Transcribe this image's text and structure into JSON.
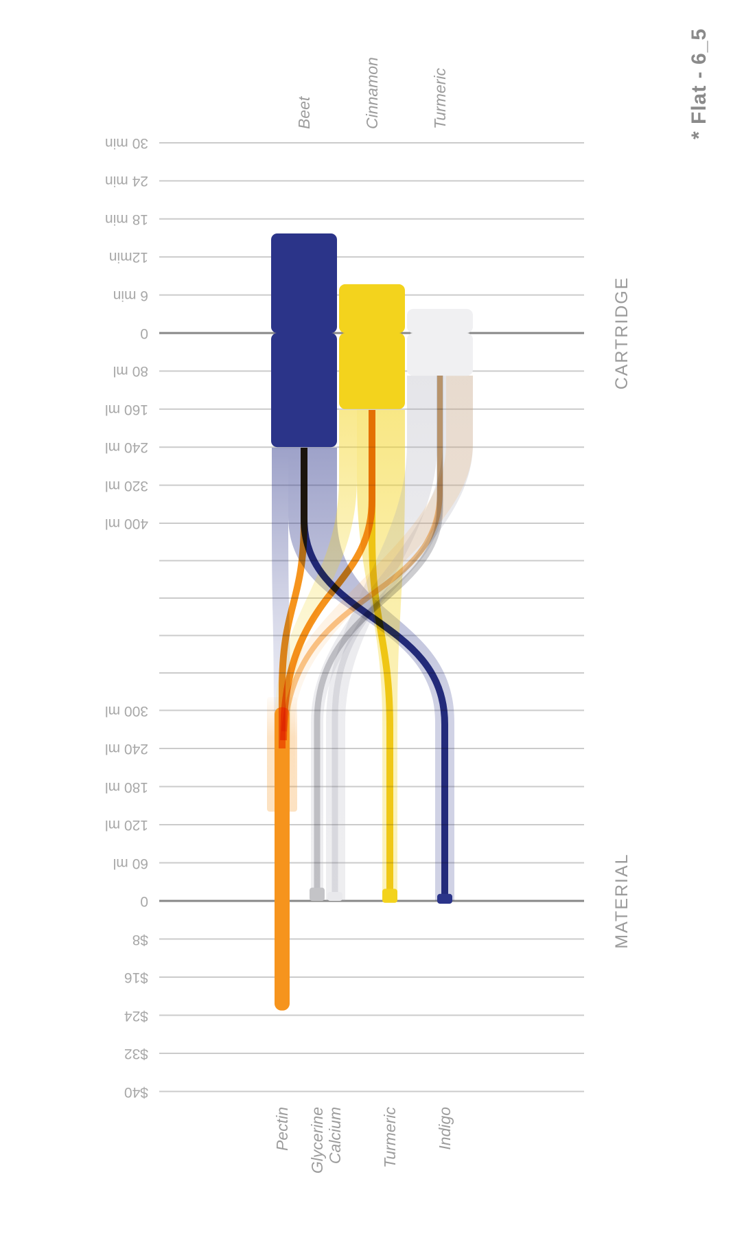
{
  "title": "* Flat - 6_5",
  "sections": {
    "cartridge": "CARTRIDGE",
    "material": "MATERIAL"
  },
  "colors": {
    "navy": "#2b3489",
    "yellow": "#f3d31d",
    "lightGray": "#f0f0f2",
    "orange": "#f6941d",
    "grayLine": "#cdcdd0",
    "grayCap": "#c4c4c7",
    "paleGrayLine": "#e9e9ec",
    "grayBandBase": "#a9a9b6",
    "grid": "#cbcbcb",
    "zeroLine": "#878787",
    "tickText": "#a8a8a8",
    "labelText": "#9c9c9c",
    "titleText": "#8a8a8a"
  },
  "chart_data": {
    "type": "sankey",
    "title": "* Flat - 6_5",
    "orientation": "landscape chart rotated 90deg CCW (all text reads bottom-to-top, ticks upside down)",
    "legend_position": "none",
    "grid": "on",
    "cartridge_axis": {
      "ticks": [
        {
          "label": "30 min",
          "value": 30,
          "kind": "min"
        },
        {
          "label": "24 min",
          "value": 24,
          "kind": "min"
        },
        {
          "label": "18 min",
          "value": 18,
          "kind": "min"
        },
        {
          "label": "12min",
          "value": 12,
          "kind": "min"
        },
        {
          "label": "6 min",
          "value": 6,
          "kind": "min"
        },
        {
          "label": "0",
          "value": 0,
          "kind": "zero"
        },
        {
          "label": "80 ml",
          "value": 80,
          "kind": "ml"
        },
        {
          "label": "160 ml",
          "value": 160,
          "kind": "ml"
        },
        {
          "label": "240 ml",
          "value": 240,
          "kind": "ml"
        },
        {
          "label": "320 ml",
          "value": 320,
          "kind": "ml"
        },
        {
          "label": "400 ml",
          "value": 400,
          "kind": "ml"
        }
      ],
      "time_range_min": [
        0,
        30
      ],
      "volume_range_ml": [
        0,
        400
      ]
    },
    "unlabeled_gridlines_between_sections": 4,
    "material_axis": {
      "ticks": [
        {
          "label": "300 ml",
          "value": 300,
          "kind": "ml"
        },
        {
          "label": "240 ml",
          "value": 240,
          "kind": "ml"
        },
        {
          "label": "180 ml",
          "value": 180,
          "kind": "ml"
        },
        {
          "label": "120 ml",
          "value": 120,
          "kind": "ml"
        },
        {
          "label": "60 ml",
          "value": 60,
          "kind": "ml"
        },
        {
          "label": "0",
          "value": 0,
          "kind": "zero"
        },
        {
          "label": "$8",
          "value": 8,
          "kind": "usd"
        },
        {
          "label": "$16",
          "value": 16,
          "kind": "usd"
        },
        {
          "label": "$24",
          "value": 24,
          "kind": "usd"
        },
        {
          "label": "$32",
          "value": 32,
          "kind": "usd"
        },
        {
          "label": "$40",
          "value": 40,
          "kind": "usd"
        }
      ],
      "volume_range_ml": [
        0,
        300
      ],
      "cost_range_usd": [
        0,
        40
      ]
    },
    "cartridges": [
      {
        "name": "Beet",
        "color": "navy",
        "time_min": 15.7,
        "volume_ml": 240
      },
      {
        "name": "Cinnamon",
        "color": "yellow",
        "time_min": 7.7,
        "volume_ml": 160
      },
      {
        "name": "Turmeric",
        "color": "lightGray",
        "time_min": 3.8,
        "volume_ml": 90
      }
    ],
    "materials": [
      {
        "name": "Pectin",
        "color": "orange",
        "volume_ml": 130,
        "cost_usd": 23
      },
      {
        "name": "Glycerine",
        "color": "grayLine",
        "volume_ml": 21,
        "cost_usd": 0
      },
      {
        "name": "Calcium",
        "color": "paleGrayLine",
        "volume_ml": 14,
        "cost_usd": 0
      },
      {
        "name": "Turmeric",
        "color": "yellow",
        "volume_ml": 19,
        "cost_usd": 0.4
      },
      {
        "name": "Indigo",
        "color": "navy",
        "volume_ml": 11,
        "cost_usd": 0.6
      }
    ],
    "flows": [
      {
        "source": "Beet",
        "target": "Indigo"
      },
      {
        "source": "Beet",
        "target": "Pectin"
      },
      {
        "source": "Cinnamon",
        "target": "Turmeric"
      },
      {
        "source": "Cinnamon",
        "target": "Pectin"
      },
      {
        "source": "Turmeric",
        "target": "Calcium"
      },
      {
        "source": "Turmeric",
        "target": "Glycerine"
      },
      {
        "source": "Turmeric",
        "target": "Pectin"
      }
    ]
  }
}
